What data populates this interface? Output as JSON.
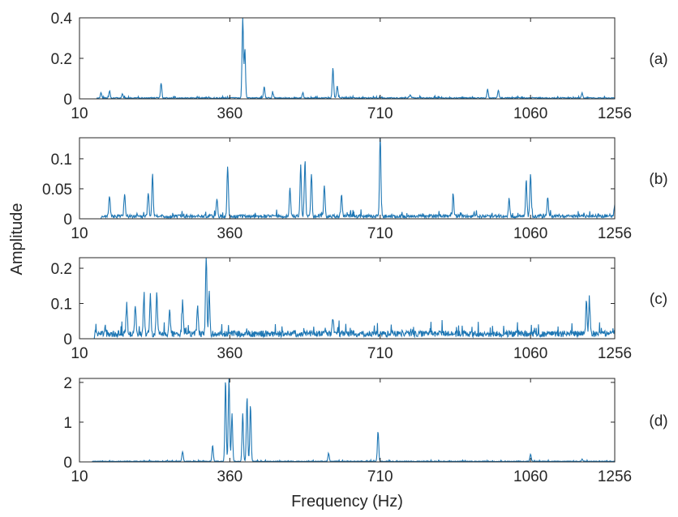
{
  "chart_data": {
    "type": "line",
    "xlabel": "Frequency (Hz)",
    "ylabel": "Amplitude",
    "series_color": "#1f77b4",
    "frame_color": "#262626",
    "panels": [
      {
        "id": "a",
        "label": "(a)",
        "xlim": [
          10,
          1256
        ],
        "xticks": [
          10,
          360,
          710,
          1060,
          1256
        ],
        "ylim": [
          0,
          0.4
        ],
        "yticks": [
          0,
          0.2,
          0.4
        ],
        "baseline_start": 50,
        "baseline_end": 1256,
        "noise_level": 0.006,
        "peaks": [
          {
            "x": 60,
            "y": 0.025
          },
          {
            "x": 80,
            "y": 0.035
          },
          {
            "x": 110,
            "y": 0.02
          },
          {
            "x": 200,
            "y": 0.075
          },
          {
            "x": 390,
            "y": 0.4
          },
          {
            "x": 395,
            "y": 0.24
          },
          {
            "x": 440,
            "y": 0.055
          },
          {
            "x": 460,
            "y": 0.025
          },
          {
            "x": 530,
            "y": 0.025
          },
          {
            "x": 600,
            "y": 0.15
          },
          {
            "x": 610,
            "y": 0.06
          },
          {
            "x": 780,
            "y": 0.015
          },
          {
            "x": 960,
            "y": 0.045
          },
          {
            "x": 985,
            "y": 0.04
          },
          {
            "x": 1180,
            "y": 0.025
          }
        ]
      },
      {
        "id": "b",
        "label": "(b)",
        "xlim": [
          10,
          1256
        ],
        "xticks": [
          10,
          360,
          710,
          1060,
          1256
        ],
        "ylim": [
          0,
          0.135
        ],
        "yticks": [
          0,
          0.05,
          0.1
        ],
        "baseline_start": 60,
        "baseline_end": 1256,
        "noise_level": 0.006,
        "peaks": [
          {
            "x": 80,
            "y": 0.035
          },
          {
            "x": 115,
            "y": 0.038
          },
          {
            "x": 170,
            "y": 0.04
          },
          {
            "x": 180,
            "y": 0.07
          },
          {
            "x": 330,
            "y": 0.03
          },
          {
            "x": 355,
            "y": 0.085
          },
          {
            "x": 500,
            "y": 0.05
          },
          {
            "x": 525,
            "y": 0.085
          },
          {
            "x": 535,
            "y": 0.095
          },
          {
            "x": 550,
            "y": 0.07
          },
          {
            "x": 580,
            "y": 0.05
          },
          {
            "x": 620,
            "y": 0.035
          },
          {
            "x": 710,
            "y": 0.135
          },
          {
            "x": 880,
            "y": 0.035
          },
          {
            "x": 1010,
            "y": 0.03
          },
          {
            "x": 1050,
            "y": 0.06
          },
          {
            "x": 1060,
            "y": 0.072
          },
          {
            "x": 1100,
            "y": 0.03
          },
          {
            "x": 1256,
            "y": 0.02
          }
        ]
      },
      {
        "id": "c",
        "label": "(c)",
        "xlim": [
          10,
          1256
        ],
        "xticks": [
          10,
          360,
          710,
          1060,
          1256
        ],
        "ylim": [
          0,
          0.23
        ],
        "yticks": [
          0,
          0.1,
          0.2
        ],
        "baseline_start": 45,
        "baseline_end": 1256,
        "noise_level": 0.02,
        "peaks": [
          {
            "x": 120,
            "y": 0.09
          },
          {
            "x": 140,
            "y": 0.085
          },
          {
            "x": 160,
            "y": 0.1
          },
          {
            "x": 175,
            "y": 0.11
          },
          {
            "x": 190,
            "y": 0.12
          },
          {
            "x": 220,
            "y": 0.07
          },
          {
            "x": 250,
            "y": 0.09
          },
          {
            "x": 285,
            "y": 0.08
          },
          {
            "x": 305,
            "y": 0.23
          },
          {
            "x": 312,
            "y": 0.12
          },
          {
            "x": 600,
            "y": 0.045
          },
          {
            "x": 1190,
            "y": 0.095
          },
          {
            "x": 1197,
            "y": 0.09
          }
        ]
      },
      {
        "id": "d",
        "label": "(d)",
        "xlim": [
          10,
          1256
        ],
        "xticks": [
          10,
          360,
          710,
          1060,
          1256
        ],
        "ylim": [
          0,
          2.1
        ],
        "yticks": [
          0,
          1,
          2
        ],
        "baseline_start": 40,
        "baseline_end": 1256,
        "noise_level": 0.02,
        "peaks": [
          {
            "x": 250,
            "y": 0.25
          },
          {
            "x": 320,
            "y": 0.4
          },
          {
            "x": 350,
            "y": 2.0
          },
          {
            "x": 358,
            "y": 2.1
          },
          {
            "x": 365,
            "y": 1.2
          },
          {
            "x": 390,
            "y": 1.2
          },
          {
            "x": 400,
            "y": 1.6
          },
          {
            "x": 408,
            "y": 1.4
          },
          {
            "x": 590,
            "y": 0.2
          },
          {
            "x": 705,
            "y": 0.75
          },
          {
            "x": 1060,
            "y": 0.18
          },
          {
            "x": 1180,
            "y": 0.05
          }
        ]
      }
    ]
  }
}
